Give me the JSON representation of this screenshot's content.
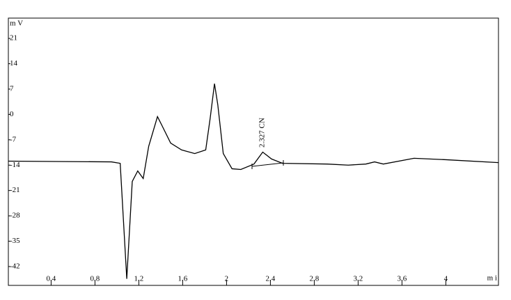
{
  "chart_data": {
    "type": "line",
    "y_label": "m V",
    "x_label": "m i",
    "x": [
      0.01,
      0.95,
      1.03,
      1.09,
      1.14,
      1.19,
      1.24,
      1.29,
      1.37,
      1.41,
      1.49,
      1.59,
      1.71,
      1.81,
      1.85,
      1.89,
      1.92,
      1.97,
      2.05,
      2.13,
      2.25,
      2.33,
      2.41,
      2.51,
      2.92,
      3.11,
      3.27,
      3.35,
      3.43,
      3.71,
      4.0,
      4.48
    ],
    "values": [
      -12.9,
      -13.1,
      -13.5,
      -45.4,
      -18.5,
      -15.6,
      -17.7,
      -8.8,
      -0.6,
      -3,
      -7.9,
      -9.8,
      -10.8,
      -9.8,
      -1.2,
      8.5,
      2.7,
      -10.8,
      -15,
      -15.2,
      -13.7,
      -10.4,
      -12.3,
      -13.5,
      -13.7,
      -14,
      -13.7,
      -13.1,
      -13.7,
      -12.1,
      -12.5,
      -13.3
    ],
    "color": "#000000",
    "xlim": [
      0.01,
      4.48
    ],
    "ylim": [
      -47.2,
      26.6
    ],
    "xticks": [
      0.4,
      0.8,
      1.2,
      1.6,
      2,
      2.4,
      2.8,
      3.2,
      3.6,
      4
    ],
    "yticks": [
      21,
      14,
      7,
      0,
      -7,
      -14,
      -21,
      -28,
      -35,
      -42
    ],
    "annotations": [
      {
        "x": 2.327,
        "text": "2.327  CN"
      }
    ]
  }
}
